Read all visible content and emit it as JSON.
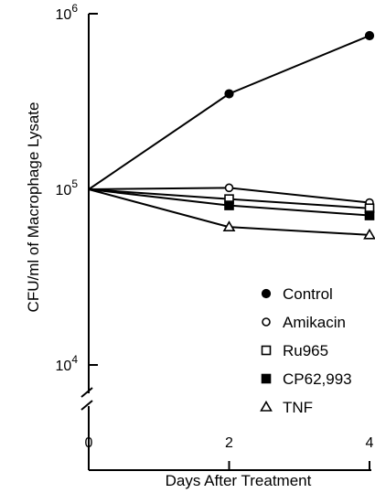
{
  "chart_data": {
    "type": "line",
    "title": "",
    "xlabel": "Days After Treatment",
    "ylabel": "CFU/ml of Macrophage Lysate",
    "y_scale": "log",
    "y_axis_break": true,
    "grid": false,
    "legend_position": "bottom-right",
    "x_ticks": [
      "0",
      "2",
      "4"
    ],
    "y_ticks": [
      {
        "value": 1000000,
        "base": "10",
        "exp": "6"
      },
      {
        "value": 100000,
        "base": "10",
        "exp": "5"
      },
      {
        "value": 10000,
        "base": "10",
        "exp": "4"
      }
    ],
    "x": [
      0,
      2,
      4
    ],
    "series": [
      {
        "name": "Control",
        "marker": "filled-circle",
        "values": [
          100000,
          350000,
          750000
        ]
      },
      {
        "name": "Amikacin",
        "marker": "open-circle",
        "values": [
          100000,
          102000,
          84000
        ]
      },
      {
        "name": "Ru965",
        "marker": "open-square",
        "values": [
          100000,
          88000,
          78000
        ]
      },
      {
        "name": "CP62,993",
        "marker": "filled-square",
        "values": [
          100000,
          81000,
          71000
        ]
      },
      {
        "name": "TNF",
        "marker": "open-triangle",
        "values": [
          100000,
          61000,
          55000
        ]
      }
    ]
  }
}
